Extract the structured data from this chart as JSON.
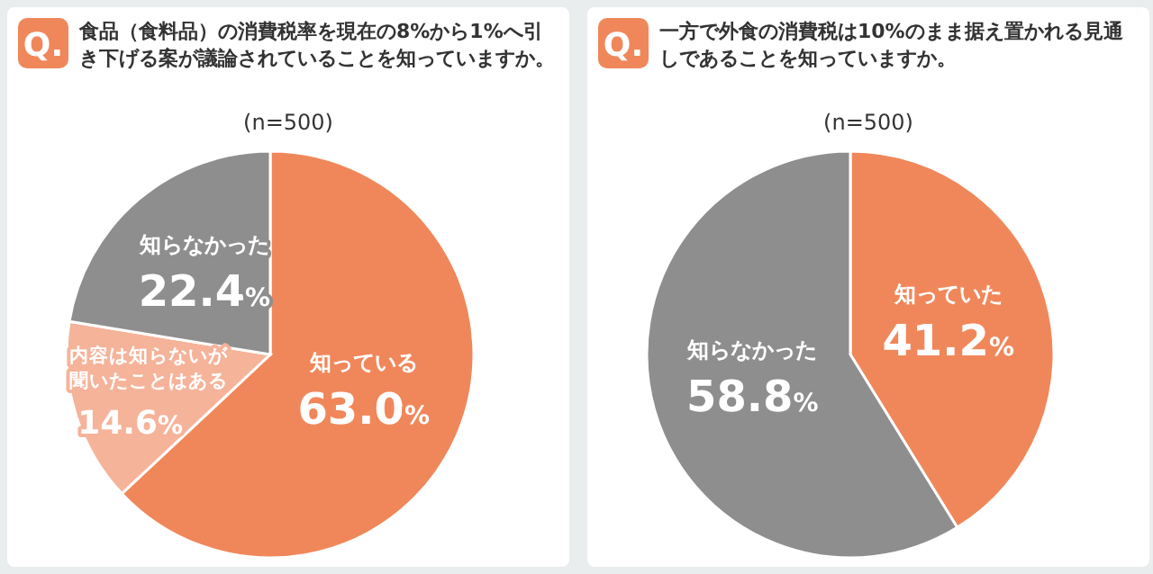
{
  "chart_data": [
    {
      "type": "pie",
      "title": "食品（食料品）の消費税率を現在の8%から1%へ引き下げる案が議論されていることを知っていますか。",
      "subtitle": "(n=500)",
      "annotations": [
        "Q."
      ],
      "categories": [
        "知っている",
        "内容は知らないが聞いたことはある",
        "知らなかった"
      ],
      "values": [
        63.0,
        14.6,
        22.4
      ],
      "value_labels": [
        "63.0%",
        "14.6%",
        "22.4%"
      ],
      "colors": [
        "#f0875a",
        "#f5b39a",
        "#8e8e8e"
      ]
    },
    {
      "type": "pie",
      "title": "一方で外食の消費税は10%のまま据え置かれる見通しであることを知っていますか。",
      "subtitle": "(n=500)",
      "annotations": [
        "Q."
      ],
      "categories": [
        "知っていた",
        "知らなかった"
      ],
      "values": [
        41.2,
        58.8
      ],
      "value_labels": [
        "41.2%",
        "58.8%"
      ],
      "colors": [
        "#f0875a",
        "#8e8e8e"
      ]
    }
  ]
}
